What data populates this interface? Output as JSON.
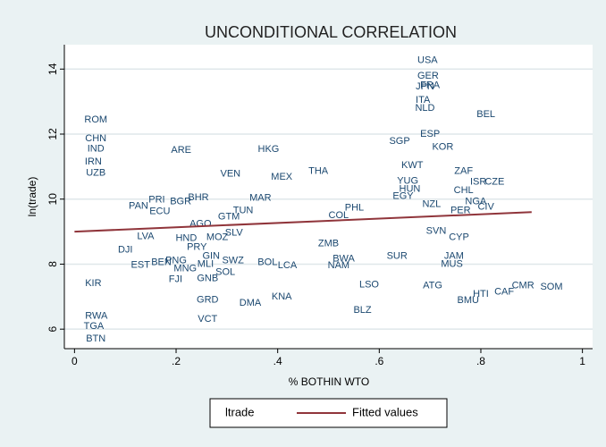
{
  "chart_data": {
    "type": "scatter",
    "title": "UNCONDITIONAL CORRELATION",
    "x_label": "% BOTHIN WTO",
    "y_label": "ln(trade)",
    "xlim": [
      -0.02,
      1.02
    ],
    "ylim": [
      5.4,
      14.75
    ],
    "xticks": [
      0,
      {
        "value": 0.2,
        "label": ".2"
      },
      {
        "value": 0.4,
        "label": ".4"
      },
      {
        "value": 0.6,
        "label": ".6"
      },
      {
        "value": 0.8,
        "label": ".8"
      },
      1
    ],
    "yticks": [
      6,
      8,
      10,
      12,
      14
    ],
    "grid": true,
    "legend": "bottom",
    "series": [
      {
        "name": "ltrade",
        "color": "#1a476f",
        "labels": [
          "USA",
          "GER",
          "FRA",
          "JPN",
          "ITA",
          "NLD",
          "BEL",
          "ROM",
          "CHN",
          "SGP",
          "ESP",
          "KOR",
          "ARE",
          "HKG",
          "IND",
          "IRN",
          "THA",
          "VEN",
          "MEX",
          "UZB",
          "KWT",
          "YUG",
          "ZAF",
          "CZE",
          "ISR",
          "HUN",
          "EGY",
          "CHL",
          "NZL",
          "NGA",
          "PRI",
          "BGR",
          "BHR",
          "MAR",
          "PAN",
          "ECU",
          "PHL",
          "TUN",
          "GTM",
          "COL",
          "PER",
          "CIV",
          "AGO",
          "LVA",
          "HND",
          "MOZ",
          "SLV",
          "PRY",
          "SVN",
          "CYP",
          "DJI",
          "ZMB",
          "EST",
          "BEN",
          "PNG",
          "MNG",
          "GIN",
          "SWZ",
          "MLI",
          "SOL",
          "BOL",
          "LCA",
          "BWA",
          "NAM",
          "SUR",
          "JAM",
          "MUS",
          "FJI",
          "GNB",
          "KIR",
          "LSO",
          "ATG",
          "GRD",
          "DMA",
          "KNA",
          "BMU",
          "HTI",
          "CAF",
          "SOM",
          "CMR",
          "BLZ",
          "VCT",
          "RWA",
          "TGA",
          "BTN"
        ],
        "x": [
          0.695,
          0.696,
          0.7,
          0.69,
          0.686,
          0.69,
          0.81,
          0.042,
          0.042,
          0.64,
          0.7,
          0.725,
          0.21,
          0.382,
          0.042,
          0.037,
          0.48,
          0.307,
          0.408,
          0.042,
          0.665,
          0.656,
          0.766,
          0.827,
          0.795,
          0.66,
          0.647,
          0.766,
          0.703,
          0.79,
          0.162,
          0.209,
          0.244,
          0.366,
          0.126,
          0.168,
          0.551,
          0.332,
          0.304,
          0.52,
          0.76,
          0.81,
          0.248,
          0.14,
          0.22,
          0.281,
          0.314,
          0.241,
          0.712,
          0.757,
          0.1,
          0.5,
          0.13,
          0.171,
          0.2,
          0.218,
          0.269,
          0.312,
          0.258,
          0.297,
          0.38,
          0.419,
          0.53,
          0.52,
          0.635,
          0.747,
          0.743,
          0.199,
          0.262,
          0.037,
          0.58,
          0.705,
          0.262,
          0.346,
          0.408,
          0.775,
          0.8,
          0.846,
          0.939,
          0.883,
          0.567,
          0.262,
          0.043,
          0.038,
          0.042
        ],
        "values": [
          14.27,
          13.78,
          13.5,
          13.45,
          13.04,
          12.8,
          12.6,
          12.44,
          11.86,
          11.78,
          12.0,
          11.6,
          11.5,
          11.53,
          11.55,
          11.15,
          10.85,
          10.77,
          10.68,
          10.8,
          11.04,
          10.55,
          10.85,
          10.52,
          10.52,
          10.3,
          10.08,
          10.27,
          9.84,
          9.92,
          9.97,
          9.92,
          10.05,
          10.03,
          9.78,
          9.62,
          9.73,
          9.64,
          9.45,
          9.5,
          9.64,
          9.75,
          9.23,
          8.85,
          8.8,
          8.82,
          8.96,
          8.52,
          9.01,
          8.82,
          8.44,
          8.63,
          7.97,
          8.05,
          8.1,
          7.86,
          8.25,
          8.1,
          8.0,
          7.75,
          8.05,
          7.95,
          8.16,
          7.95,
          8.25,
          8.25,
          8.0,
          7.53,
          7.56,
          7.4,
          7.37,
          7.34,
          6.9,
          6.8,
          6.99,
          6.88,
          7.07,
          7.15,
          7.29,
          7.34,
          6.58,
          6.3,
          6.4,
          6.08,
          5.7
        ]
      },
      {
        "name": "Fitted values",
        "type": "line",
        "color": "#90353b",
        "x": [
          0,
          0.9
        ],
        "values": [
          9.0,
          9.6
        ]
      }
    ]
  }
}
